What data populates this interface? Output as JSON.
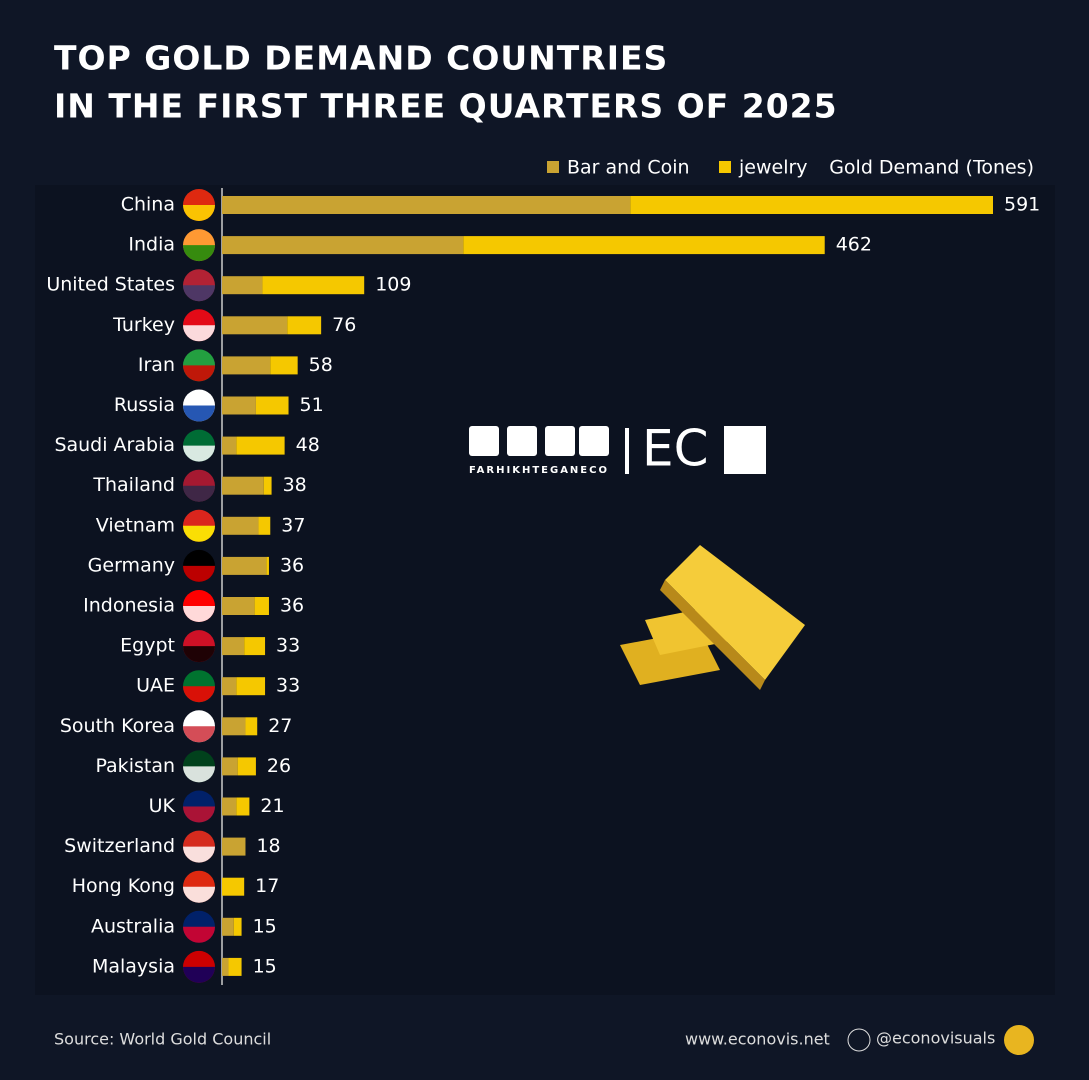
{
  "chart_data": {
    "type": "stacked-bar-horizontal",
    "title_lines": [
      "TOP GOLD DEMAND COUNTRIES",
      "IN THE FIRST THREE QUARTERS OF 2025"
    ],
    "value_axis_label": "Gold Demand (Tones)",
    "categories": [
      "China",
      "India",
      "United States",
      "Turkey",
      "Iran",
      "Russia",
      "Saudi Arabia",
      "Thailand",
      "Vietnam",
      "Germany",
      "Indonesia",
      "Egypt",
      "UAE",
      "South Korea",
      "Pakistan",
      "UK",
      "Switzerland",
      "Hong Kong",
      "Australia",
      "Malaysia"
    ],
    "series": [
      {
        "name": "Bar and Coin",
        "color": "#c9a332",
        "values": [
          313,
          185,
          31,
          50,
          37,
          26,
          11,
          32,
          28,
          34,
          25,
          17,
          11,
          18,
          12,
          11,
          18,
          0,
          9,
          5
        ]
      },
      {
        "name": "jewelry",
        "color": "#f5c800",
        "values": [
          278,
          277,
          78,
          26,
          21,
          25,
          37,
          6,
          9,
          2,
          11,
          16,
          22,
          9,
          14,
          10,
          0,
          17,
          6,
          10
        ]
      }
    ],
    "totals": [
      591,
      462,
      109,
      76,
      58,
      51,
      48,
      38,
      37,
      36,
      36,
      33,
      33,
      27,
      26,
      21,
      18,
      17,
      15,
      15
    ],
    "xlim": [
      0,
      591
    ],
    "source": "Source: World Gold Council",
    "website": "www.econovis.net",
    "handle": "@econovisuals",
    "watermark": {
      "brand": "FARHIKHTEGANECO",
      "mark": "EC"
    }
  }
}
